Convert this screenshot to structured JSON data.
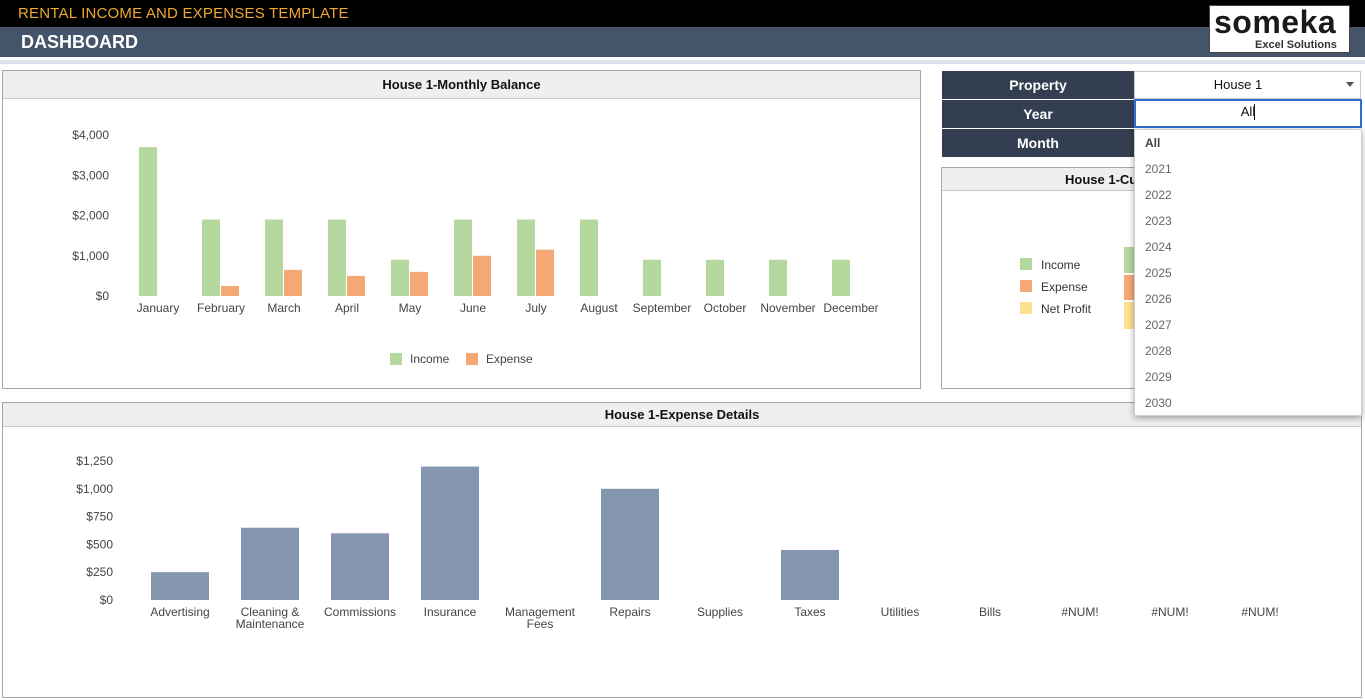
{
  "header": {
    "app_title": "RENTAL INCOME AND EXPENSES TEMPLATE",
    "section_title": "DASHBOARD",
    "logo_text": "someka",
    "logo_sub": "Excel Solutions"
  },
  "filters": {
    "property_label": "Property",
    "property_value": "House 1",
    "year_label": "Year",
    "year_value": "All",
    "month_label": "Month",
    "year_options": [
      "All",
      "2021",
      "2022",
      "2023",
      "2024",
      "2025",
      "2026",
      "2027",
      "2028",
      "2029",
      "2030"
    ]
  },
  "panels": {
    "monthly_title": "House 1-Monthly Balance",
    "cumulative_title": "House 1-Cu",
    "expense_title": "House 1-Expense Details"
  },
  "cumulative_legend": [
    "Income",
    "Expense",
    "Net Profit"
  ],
  "colors": {
    "income": "#b4d89e",
    "expense": "#f4a875",
    "net_profit": "#fde18f",
    "expense_detail_bar": "#8496b0"
  },
  "chart_data": [
    {
      "type": "bar",
      "title": "House 1-Monthly Balance",
      "categories": [
        "January",
        "February",
        "March",
        "April",
        "May",
        "June",
        "July",
        "August",
        "September",
        "October",
        "November",
        "December"
      ],
      "series": [
        {
          "name": "Income",
          "values": [
            3700,
            1900,
            1900,
            1900,
            900,
            1900,
            1900,
            1900,
            900,
            900,
            900,
            900
          ]
        },
        {
          "name": "Expense",
          "values": [
            0,
            250,
            650,
            500,
            600,
            1000,
            1150,
            0,
            0,
            0,
            0,
            0
          ]
        }
      ],
      "y_ticks": [
        "$0",
        "$1,000",
        "$2,000",
        "$3,000",
        "$4,000"
      ],
      "ylim": [
        0,
        4000
      ],
      "legend_position": "bottom"
    },
    {
      "type": "bar",
      "title": "House 1-Expense Details",
      "categories": [
        "Advertising",
        "Cleaning & Maintenance",
        "Commissions",
        "Insurance",
        "Management Fees",
        "Repairs",
        "Supplies",
        "Taxes",
        "Utilities",
        "Bills",
        "#NUM!",
        "#NUM!",
        "#NUM!"
      ],
      "category_lines": [
        [
          "Advertising"
        ],
        [
          "Cleaning &",
          "Maintenance"
        ],
        [
          "Commissions"
        ],
        [
          "Insurance"
        ],
        [
          "Management",
          "Fees"
        ],
        [
          "Repairs"
        ],
        [
          "Supplies"
        ],
        [
          "Taxes"
        ],
        [
          "Utilities"
        ],
        [
          "Bills"
        ],
        [
          "#NUM!"
        ],
        [
          "#NUM!"
        ],
        [
          "#NUM!"
        ]
      ],
      "values": [
        250,
        650,
        600,
        1200,
        0,
        1000,
        0,
        450,
        0,
        0,
        0,
        0,
        0
      ],
      "y_ticks": [
        "$0",
        "$250",
        "$500",
        "$750",
        "$1,000",
        "$1,250"
      ],
      "ylim": [
        0,
        1250
      ],
      "legend_position": "none"
    }
  ]
}
